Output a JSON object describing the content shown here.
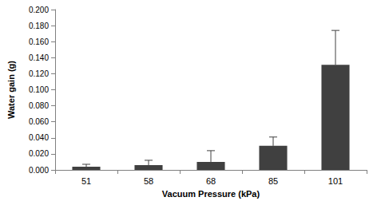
{
  "chart_data": {
    "type": "bar",
    "x_label": "Vacuum Pressure (kPa)",
    "y_label": "Water gain (g)",
    "categories": [
      "51",
      "58",
      "68",
      "85",
      "101"
    ],
    "values": [
      0.004,
      0.006,
      0.01,
      0.03,
      0.131
    ],
    "errors": [
      0.003,
      0.006,
      0.014,
      0.011,
      0.043
    ],
    "color": "#404040",
    "ylim": [
      0,
      0.2
    ],
    "yticks": [
      {
        "value": 0,
        "label": "0.000"
      },
      {
        "value": 0.02,
        "label": "0.020"
      },
      {
        "value": 0.04,
        "label": "0.040"
      },
      {
        "value": 0.06,
        "label": "0.060"
      },
      {
        "value": 0.08,
        "label": "0.080"
      },
      {
        "value": 0.1,
        "label": "0.100"
      },
      {
        "value": 0.12,
        "label": "0.120"
      },
      {
        "value": 0.14,
        "label": "0.140"
      },
      {
        "value": 0.16,
        "label": "0.160"
      },
      {
        "value": 0.18,
        "label": "0.180"
      },
      {
        "value": 0.2,
        "label": "0.200"
      }
    ],
    "grid": false
  }
}
